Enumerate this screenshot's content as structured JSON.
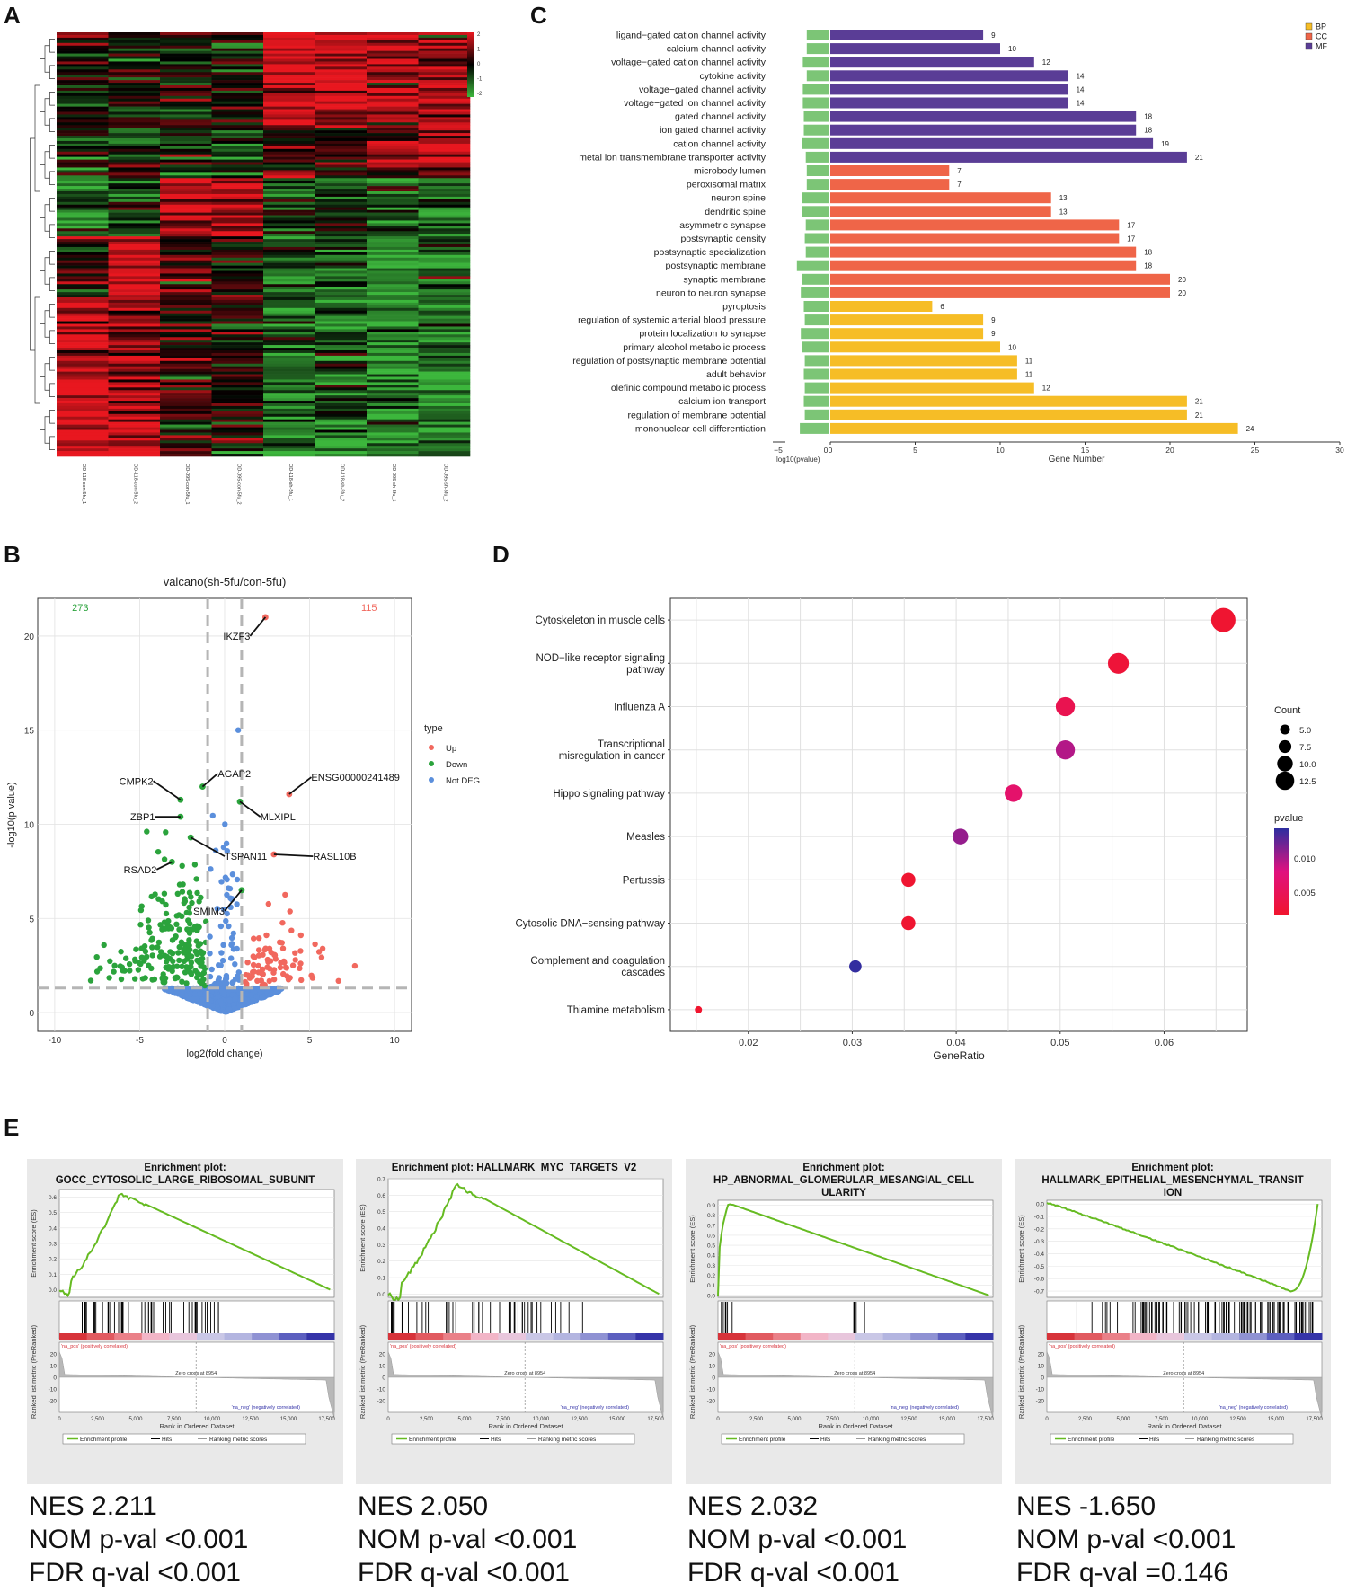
{
  "panel_labels": {
    "a": "A",
    "b": "B",
    "c": "C",
    "d": "D",
    "e": "E"
  },
  "chart_data": [
    {
      "id": "A",
      "type": "heatmap",
      "samples": [
        "OD-118-con-5fu_1",
        "OD-118-con-5fu_2",
        "OD-095-con-5fu_1",
        "OD-095-con-5fu_2",
        "OD-118-sh-5fu_1",
        "OD-118-sh-5fu_2",
        "OD-095-sh-5fu_1",
        "OD-095-sh-5fu_2"
      ],
      "color_scale": {
        "ticks": [
          "2",
          "1",
          "0",
          "-1",
          "-2"
        ],
        "colors": [
          "#e8171f",
          "#000000",
          "#3cb63c"
        ]
      }
    },
    {
      "id": "B",
      "type": "scatter",
      "title": "valcano(sh-5fu/con-5fu)",
      "xlabel": "log2(fold change)",
      "ylabel": "-log10(p value)",
      "xlim": [
        -11,
        11
      ],
      "ylim": [
        -1,
        22
      ],
      "xticks": [
        "-10",
        "-5",
        "0",
        "5",
        "10"
      ],
      "yticks": [
        "0",
        "5",
        "10",
        "15",
        "20"
      ],
      "count_down": "273",
      "count_up": "115",
      "legend": {
        "title": "type",
        "items": [
          {
            "label": "Up",
            "color": "#f1685e"
          },
          {
            "label": "Down",
            "color": "#2ba33c"
          },
          {
            "label": "Not DEG",
            "color": "#5b8fdc"
          }
        ]
      },
      "thresholds": {
        "x": [
          -1,
          1
        ],
        "y": 1.3
      },
      "labeled_genes": [
        {
          "name": "IKZF3",
          "x": 2.4,
          "y": 21.0,
          "tx": 1.5,
          "ty": 20.0
        },
        {
          "name": "AGAP2",
          "x": -1.3,
          "y": 12.0,
          "tx": -0.4,
          "ty": 12.7
        },
        {
          "name": "CMPK2",
          "x": -2.6,
          "y": 11.3,
          "tx": -4.2,
          "ty": 12.3
        },
        {
          "name": "ENSG00000241489",
          "x": 3.8,
          "y": 11.6,
          "tx": 5.1,
          "ty": 12.5
        },
        {
          "name": "ZBP1",
          "x": -2.6,
          "y": 10.4,
          "tx": -4.1,
          "ty": 10.4
        },
        {
          "name": "MLXIPL",
          "x": 0.9,
          "y": 11.2,
          "tx": 2.1,
          "ty": 10.4
        },
        {
          "name": "TSPAN11",
          "x": -2.0,
          "y": 9.3,
          "tx": 0.0,
          "ty": 8.3
        },
        {
          "name": "RASL10B",
          "x": 2.9,
          "y": 8.4,
          "tx": 5.2,
          "ty": 8.3
        },
        {
          "name": "RSAD2",
          "x": -3.1,
          "y": 8.0,
          "tx": -4.0,
          "ty": 7.6
        },
        {
          "name": "SMIM3",
          "x": 1.0,
          "y": 6.5,
          "tx": 0.0,
          "ty": 5.4
        }
      ]
    },
    {
      "id": "C",
      "type": "bar",
      "legend": [
        {
          "label": "BP",
          "color": "#f6bd26"
        },
        {
          "label": "CC",
          "color": "#ef6548"
        },
        {
          "label": "MF",
          "color": "#5a3d96"
        }
      ],
      "categories": [
        "ligand−gated cation channel activity",
        "calcium channel activity",
        "voltage−gated cation channel activity",
        "cytokine activity",
        "voltage−gated channel activity",
        "voltage−gated ion channel activity",
        "gated channel activity",
        "ion gated channel activity",
        "cation channel activity",
        "metal ion transmembrane transporter activity",
        "microbody lumen",
        "peroxisomal matrix",
        "neuron spine",
        "dendritic spine",
        "asymmetric synapse",
        "postsynaptic density",
        "postsynaptic specialization",
        "postsynaptic membrane",
        "synaptic membrane",
        "neuron to neuron synapse",
        "pyroptosis",
        "regulation of systemic arterial blood pressure",
        "protein localization to synapse",
        "primary alcohol metabolic process",
        "regulation of postsynaptic membrane potential",
        "adult behavior",
        "olefinic compound metabolic process",
        "calcium ion transport",
        "regulation of membrane potential",
        "mononuclear cell differentiation"
      ],
      "groups": [
        "MF",
        "MF",
        "MF",
        "MF",
        "MF",
        "MF",
        "MF",
        "MF",
        "MF",
        "MF",
        "CC",
        "CC",
        "CC",
        "CC",
        "CC",
        "CC",
        "CC",
        "CC",
        "CC",
        "CC",
        "BP",
        "BP",
        "BP",
        "BP",
        "BP",
        "BP",
        "BP",
        "BP",
        "BP",
        "BP"
      ],
      "gene_number": [
        9,
        10,
        12,
        14,
        14,
        14,
        18,
        18,
        19,
        21,
        7,
        7,
        13,
        13,
        17,
        17,
        18,
        18,
        20,
        20,
        6,
        9,
        9,
        10,
        11,
        11,
        12,
        21,
        21,
        24
      ],
      "log10_pvalue": [
        -2.2,
        -2.2,
        -2.6,
        -2.2,
        -2.6,
        -2.6,
        -2.5,
        -2.5,
        -2.7,
        -2.3,
        -2.2,
        -2.2,
        -2.7,
        -2.7,
        -2.3,
        -2.4,
        -2.3,
        -3.2,
        -2.7,
        -2.8,
        -2.5,
        -2.4,
        -2.8,
        -2.7,
        -2.4,
        -2.5,
        -2.4,
        -2.5,
        -2.4,
        -2.9
      ],
      "label_values": [
        "9",
        "10",
        "12",
        "14",
        "14",
        "14",
        "18",
        "18",
        "19",
        "21",
        "7",
        "7",
        "13",
        "13",
        "17",
        "17",
        "18",
        "18",
        "20",
        "20",
        "6",
        "9",
        "9",
        "10",
        "11",
        "11",
        "12",
        "21",
        "21",
        "24"
      ],
      "xlabel_left": "log10(pvalue)",
      "xlabel": "Gene Number",
      "left_ticks": [
        "−5",
        "0"
      ],
      "right_ticks": [
        "0",
        "5",
        "10",
        "15",
        "20",
        "25",
        "30"
      ],
      "xlim_left": [
        -5,
        0
      ],
      "xlim_right": [
        0,
        30
      ]
    },
    {
      "id": "D",
      "type": "scatter",
      "pathways": [
        "Cytoskeleton in muscle cells",
        "NOD−like receptor signaling\npathway",
        "Influenza A",
        "Transcriptional\nmisregulation in cancer",
        "Hippo signaling pathway",
        "Measles",
        "Pertussis",
        "Cytosolic DNA−sensing pathway",
        "Complement and coagulation\ncascades",
        "Thiamine metabolism"
      ],
      "gene_ratio": [
        0.0657,
        0.0556,
        0.0505,
        0.0505,
        0.0455,
        0.0404,
        0.0354,
        0.0354,
        0.0303,
        0.0152
      ],
      "count": [
        13,
        11,
        10,
        10,
        9,
        8,
        7,
        7,
        6,
        3
      ],
      "pvalue": [
        0.0012,
        0.0018,
        0.0035,
        0.0085,
        0.0055,
        0.0095,
        0.0012,
        0.0012,
        0.0128,
        0.0011
      ],
      "xlabel": "GeneRatio",
      "xticks": [
        "0.02",
        "0.03",
        "0.04",
        "0.05",
        "0.06"
      ],
      "xlim": [
        0.0125,
        0.068
      ],
      "size_legend": {
        "title": "Count",
        "items": [
          "5.0",
          "7.5",
          "10.0",
          "12.5"
        ]
      },
      "color_legend": {
        "title": "pvalue",
        "items": [
          "0.010",
          "0.005"
        ],
        "colors": [
          "#2d2ea0",
          "#e0117f",
          "#f0152e"
        ]
      }
    },
    {
      "id": "E",
      "type": "line",
      "plots": [
        {
          "title_line1": "Enrichment plot:",
          "title_line2": "GOCC_CYTOSOLIC_LARGE_RIBOSOMAL_SUBUNIT",
          "title_line3": "",
          "ylabel": "Enrichment score (ES)",
          "yticks": [
            "0.6",
            "0.5",
            "0.4",
            "0.3",
            "0.2",
            "0.1",
            "0.0"
          ],
          "curve_type": "positive",
          "peak_x": 4000,
          "peak_y": 0.63,
          "ylim": [
            -0.05,
            0.65
          ],
          "hits_range": [
            1500,
            10500
          ],
          "nes": "NES 2.211",
          "nom": "NOM p-val <0.001",
          "fdr": "FDR q-val <0.001"
        },
        {
          "title_line1": "Enrichment plot: HALLMARK_MYC_TARGETS_V2",
          "title_line2": "",
          "title_line3": "",
          "ylabel": "Enrichment score (ES)",
          "yticks": [
            "0.7",
            "0.6",
            "0.5",
            "0.4",
            "0.3",
            "0.2",
            "0.1",
            "0.0"
          ],
          "curve_type": "positive",
          "peak_x": 4500,
          "peak_y": 0.67,
          "ylim": [
            -0.02,
            0.7
          ],
          "hits_range": [
            200,
            13000
          ],
          "nes": "NES 2.050",
          "nom": "NOM p-val <0.001",
          "fdr": "FDR q-val <0.001"
        },
        {
          "title_line1": "Enrichment plot:",
          "title_line2": "HP_ABNORMAL_GLOMERULAR_MESANGIAL_CELL",
          "title_line3": "ULARITY",
          "ylabel": "Enrichment score (ES)",
          "yticks": [
            "0.9",
            "0.8",
            "0.7",
            "0.6",
            "0.5",
            "0.4",
            "0.3",
            "0.2",
            "0.1",
            "0.0"
          ],
          "curve_type": "positive",
          "peak_x": 700,
          "peak_y": 0.92,
          "ylim": [
            -0.02,
            0.95
          ],
          "hits_range": [
            100,
            11000
          ],
          "nes": "NES 2.032",
          "nom": "NOM p-val <0.001",
          "fdr": "FDR q-val <0.001"
        },
        {
          "title_line1": "Enrichment plot:",
          "title_line2": "HALLMARK_EPITHELIAL_MESENCHYMAL_TRANSIT",
          "title_line3": "ION",
          "ylabel": "Enrichment score (ES)",
          "yticks": [
            "0.0",
            "-0.1",
            "-0.2",
            "-0.3",
            "-0.4",
            "-0.5",
            "-0.6",
            "-0.7"
          ],
          "curve_type": "negative",
          "peak_x": 16000,
          "peak_y": -0.7,
          "ylim": [
            -0.75,
            0.03
          ],
          "hits_range": [
            200,
            17800
          ],
          "nes": "NES -1.650",
          "nom": "NOM p-val <0.001",
          "fdr": "FDR q-val =0.146"
        }
      ],
      "common": {
        "rank_ylabel": "Ranked list metric (PreRanked)",
        "rank_yticks": [
          "20",
          "10",
          "0",
          "-10",
          "-20"
        ],
        "pos_label": "'na_pos' (positively correlated)",
        "neg_label": "'na_neg' (negatively correlated)",
        "zero_cross": "Zero cross at 8954",
        "xlabel": "Rank in Ordered Dataset",
        "xticks": [
          "0",
          "2,500",
          "5,000",
          "7,500",
          "10,000",
          "12,500",
          "15,000",
          "17,500"
        ],
        "legend_profile": "Enrichment profile",
        "legend_hits": "Hits",
        "legend_ranking": "Ranking metric scores"
      }
    }
  ]
}
